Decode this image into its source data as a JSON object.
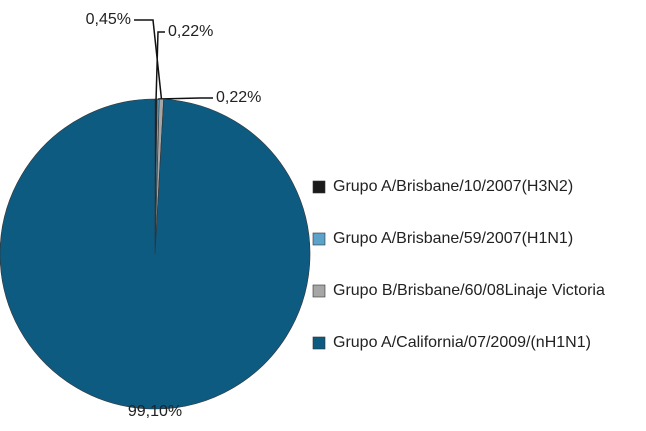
{
  "chart_data": {
    "type": "pie",
    "categories": [
      "Grupo A/Brisbane/10/2007(H3N2)",
      "Grupo A/Brisbane/59/2007(H1N1)",
      "Grupo B/Brisbane/60/08Linaje Victoria",
      "Grupo A/California/07/2009/(nH1N1)"
    ],
    "values": [
      0.22,
      0.22,
      0.45,
      99.1
    ],
    "value_labels": [
      "0,22%",
      "0,22%",
      "0,45%",
      "99,10%"
    ],
    "colors": [
      "#1a1a1a",
      "#5ba3c9",
      "#a6a6a6",
      "#0e5b82"
    ],
    "legend": "right"
  }
}
